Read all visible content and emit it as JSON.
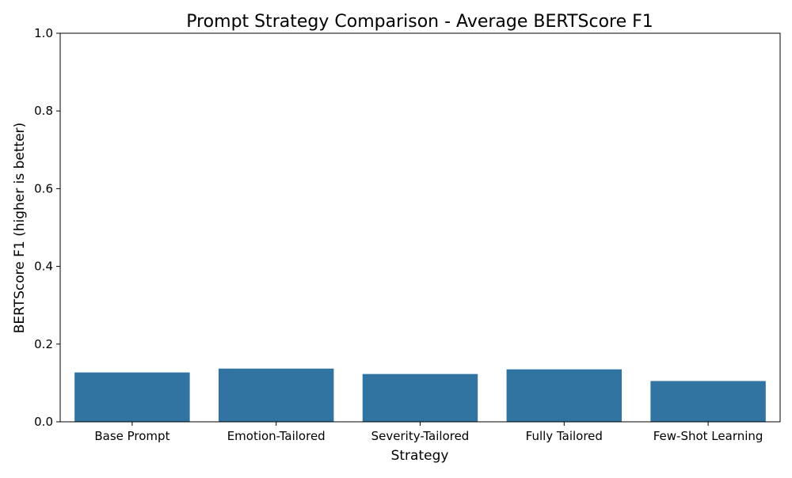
{
  "chart_data": {
    "type": "bar",
    "title": "Prompt Strategy Comparison - Average BERTScore F1",
    "xlabel": "Strategy",
    "ylabel": "BERTScore F1 (higher is better)",
    "categories": [
      "Base Prompt",
      "Emotion-Tailored",
      "Severity-Tailored",
      "Fully Tailored",
      "Few-Shot Learning"
    ],
    "values": [
      0.127,
      0.137,
      0.123,
      0.135,
      0.105
    ],
    "ylim": [
      0,
      1.0
    ],
    "yticks": [
      0.0,
      0.2,
      0.4,
      0.6,
      0.8,
      1.0
    ],
    "ytick_labels": [
      "0.0",
      "0.2",
      "0.4",
      "0.6",
      "0.8",
      "1.0"
    ],
    "grid": false,
    "bar_color": "#3274a1"
  }
}
